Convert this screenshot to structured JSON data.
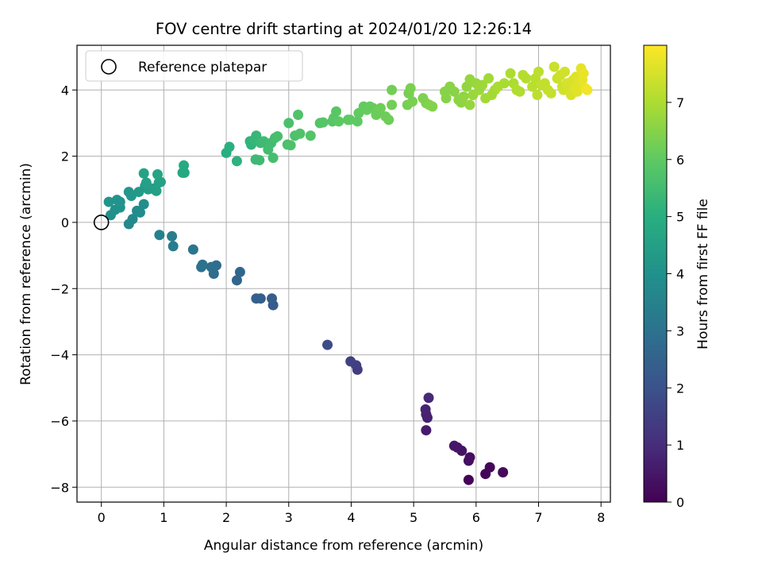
{
  "chart_data": {
    "type": "scatter",
    "title": "FOV centre drift starting at 2024/01/20 12:26:14",
    "xlabel": "Angular distance from reference (arcmin)",
    "ylabel": "Rotation from reference (arcmin)",
    "xlim": [
      -0.39,
      8.15
    ],
    "ylim": [
      -8.45,
      5.35
    ],
    "xticks": [
      0,
      1,
      2,
      3,
      4,
      5,
      6,
      7,
      8
    ],
    "xtick_labels": [
      "0",
      "1",
      "2",
      "3",
      "4",
      "5",
      "6",
      "7",
      "8"
    ],
    "yticks": [
      4,
      2,
      0,
      -2,
      -4,
      -6,
      -8
    ],
    "ytick_labels": [
      "4",
      "2",
      "0",
      "−2",
      "−4",
      "−6",
      "−8"
    ],
    "grid": true,
    "colormap": "viridis",
    "colorbar": {
      "label": "Hours from first FF file",
      "range": [
        0,
        8
      ],
      "ticks": [
        0,
        1,
        2,
        3,
        4,
        5,
        6,
        7
      ],
      "tick_labels": [
        "0",
        "1",
        "2",
        "3",
        "4",
        "5",
        "6",
        "7"
      ]
    },
    "legend": {
      "position": "top-left",
      "entries": [
        "Reference platepar"
      ]
    },
    "reference_point": {
      "x": 0,
      "y": 0
    },
    "points": [
      [
        5.88,
        -7.78,
        0.05
      ],
      [
        6.15,
        -7.6,
        0.1
      ],
      [
        6.22,
        -7.4,
        0.15
      ],
      [
        6.43,
        -7.55,
        0.2
      ],
      [
        5.9,
        -7.1,
        0.25
      ],
      [
        5.88,
        -7.2,
        0.3
      ],
      [
        5.77,
        -6.9,
        0.4
      ],
      [
        5.7,
        -6.8,
        0.45
      ],
      [
        5.65,
        -6.75,
        0.5
      ],
      [
        5.2,
        -6.28,
        0.6
      ],
      [
        5.22,
        -5.9,
        0.7
      ],
      [
        5.2,
        -5.8,
        0.75
      ],
      [
        5.19,
        -5.65,
        0.8
      ],
      [
        5.24,
        -5.3,
        0.9
      ],
      [
        4.1,
        -4.45,
        1.4
      ],
      [
        4.08,
        -4.32,
        1.45
      ],
      [
        3.99,
        -4.2,
        1.5
      ],
      [
        3.62,
        -3.7,
        1.8
      ],
      [
        2.75,
        -2.5,
        2.3
      ],
      [
        2.73,
        -2.3,
        2.35
      ],
      [
        2.55,
        -2.3,
        2.4
      ],
      [
        2.48,
        -2.3,
        2.45
      ],
      [
        2.17,
        -1.75,
        2.6
      ],
      [
        2.22,
        -1.5,
        2.65
      ],
      [
        1.8,
        -1.55,
        2.8
      ],
      [
        1.84,
        -1.3,
        2.85
      ],
      [
        1.76,
        -1.35,
        2.9
      ],
      [
        1.6,
        -1.35,
        2.95
      ],
      [
        1.62,
        -1.28,
        3.0
      ],
      [
        1.47,
        -0.82,
        3.1
      ],
      [
        1.15,
        -0.72,
        3.3
      ],
      [
        1.13,
        -0.42,
        3.35
      ],
      [
        0.93,
        -0.38,
        3.45
      ],
      [
        0.44,
        -0.05,
        3.7
      ],
      [
        0.5,
        0.1,
        3.75
      ],
      [
        0.57,
        0.35,
        3.8
      ],
      [
        0.62,
        0.3,
        3.85
      ],
      [
        0.68,
        0.55,
        3.9
      ],
      [
        0.15,
        0.22,
        3.95
      ],
      [
        0.22,
        0.38,
        4.0
      ],
      [
        0.3,
        0.45,
        4.05
      ],
      [
        0.25,
        0.68,
        4.1
      ],
      [
        0.3,
        0.62,
        4.1
      ],
      [
        0.12,
        0.62,
        4.15
      ],
      [
        0.44,
        0.92,
        4.2
      ],
      [
        0.48,
        0.8,
        4.25
      ],
      [
        0.6,
        0.92,
        4.3
      ],
      [
        0.7,
        1.1,
        4.35
      ],
      [
        0.75,
        1.0,
        4.4
      ],
      [
        0.82,
        1.02,
        4.45
      ],
      [
        0.88,
        0.95,
        4.5
      ],
      [
        0.72,
        1.2,
        4.5
      ],
      [
        0.92,
        1.2,
        4.55
      ],
      [
        0.95,
        1.22,
        4.6
      ],
      [
        0.68,
        1.48,
        4.6
      ],
      [
        0.9,
        1.45,
        4.65
      ],
      [
        1.3,
        1.5,
        4.75
      ],
      [
        1.33,
        1.5,
        4.8
      ],
      [
        1.32,
        1.72,
        4.85
      ],
      [
        2.0,
        2.1,
        5.0
      ],
      [
        2.05,
        2.28,
        5.05
      ],
      [
        2.17,
        1.85,
        5.1
      ],
      [
        2.4,
        2.35,
        5.15
      ],
      [
        2.38,
        2.45,
        5.2
      ],
      [
        2.45,
        2.5,
        5.25
      ],
      [
        2.48,
        2.62,
        5.3
      ],
      [
        2.55,
        2.4,
        5.35
      ],
      [
        2.47,
        1.9,
        5.4
      ],
      [
        2.53,
        1.88,
        5.4
      ],
      [
        2.6,
        2.45,
        5.45
      ],
      [
        2.67,
        2.2,
        5.5
      ],
      [
        2.72,
        2.4,
        5.5
      ],
      [
        2.75,
        1.95,
        5.55
      ],
      [
        2.78,
        2.55,
        5.55
      ],
      [
        2.82,
        2.6,
        5.6
      ],
      [
        2.98,
        2.35,
        5.65
      ],
      [
        3.0,
        3.0,
        5.65
      ],
      [
        3.03,
        2.33,
        5.7
      ],
      [
        3.1,
        2.62,
        5.7
      ],
      [
        3.15,
        3.25,
        5.75
      ],
      [
        3.18,
        2.68,
        5.75
      ],
      [
        3.35,
        2.62,
        5.8
      ],
      [
        3.5,
        3.0,
        5.8
      ],
      [
        3.55,
        3.02,
        5.85
      ],
      [
        3.7,
        3.05,
        5.85
      ],
      [
        3.72,
        3.15,
        5.9
      ],
      [
        3.76,
        3.35,
        5.9
      ],
      [
        3.8,
        3.05,
        5.95
      ],
      [
        3.95,
        3.1,
        5.95
      ],
      [
        3.98,
        3.1,
        6.0
      ],
      [
        4.1,
        3.05,
        6.0
      ],
      [
        4.12,
        3.3,
        6.05
      ],
      [
        4.2,
        3.5,
        6.05
      ],
      [
        4.25,
        3.4,
        6.1
      ],
      [
        4.3,
        3.5,
        6.1
      ],
      [
        4.35,
        3.45,
        6.1
      ],
      [
        4.4,
        3.25,
        6.15
      ],
      [
        4.42,
        3.38,
        6.15
      ],
      [
        4.47,
        3.45,
        6.2
      ],
      [
        4.55,
        3.2,
        6.2
      ],
      [
        4.6,
        3.1,
        6.2
      ],
      [
        4.65,
        3.55,
        6.25
      ],
      [
        4.65,
        4.0,
        6.25
      ],
      [
        4.9,
        3.55,
        6.3
      ],
      [
        4.92,
        3.9,
        6.3
      ],
      [
        4.95,
        4.05,
        6.35
      ],
      [
        4.98,
        3.65,
        6.35
      ],
      [
        5.15,
        3.75,
        6.4
      ],
      [
        5.2,
        3.6,
        6.4
      ],
      [
        5.25,
        3.55,
        6.45
      ],
      [
        5.3,
        3.5,
        6.45
      ],
      [
        5.5,
        3.95,
        6.5
      ],
      [
        5.52,
        3.75,
        6.5
      ],
      [
        5.58,
        4.1,
        6.55
      ],
      [
        5.65,
        3.95,
        6.55
      ],
      [
        5.72,
        3.7,
        6.6
      ],
      [
        5.76,
        3.62,
        6.6
      ],
      [
        5.8,
        3.8,
        6.65
      ],
      [
        5.85,
        4.1,
        6.65
      ],
      [
        5.9,
        4.32,
        6.7
      ],
      [
        5.9,
        3.55,
        6.7
      ],
      [
        5.95,
        3.85,
        6.75
      ],
      [
        6.0,
        4.2,
        6.75
      ],
      [
        6.05,
        4.0,
        6.8
      ],
      [
        6.1,
        4.15,
        6.8
      ],
      [
        6.15,
        3.75,
        6.85
      ],
      [
        6.2,
        4.35,
        6.85
      ],
      [
        6.25,
        3.85,
        6.9
      ],
      [
        6.3,
        4.0,
        6.9
      ],
      [
        6.35,
        4.1,
        6.95
      ],
      [
        6.45,
        4.2,
        6.95
      ],
      [
        6.55,
        4.5,
        7.0
      ],
      [
        6.6,
        4.2,
        7.0
      ],
      [
        6.65,
        4.0,
        7.05
      ],
      [
        6.7,
        3.95,
        7.05
      ],
      [
        6.75,
        4.45,
        7.1
      ],
      [
        6.8,
        4.35,
        7.1
      ],
      [
        6.9,
        4.1,
        7.15
      ],
      [
        6.95,
        4.35,
        7.15
      ],
      [
        6.98,
        3.85,
        7.2
      ],
      [
        7.0,
        4.55,
        7.2
      ],
      [
        7.05,
        4.15,
        7.25
      ],
      [
        7.1,
        4.2,
        7.25
      ],
      [
        7.15,
        4.0,
        7.3
      ],
      [
        7.2,
        3.9,
        7.3
      ],
      [
        7.25,
        4.7,
        7.35
      ],
      [
        7.3,
        4.35,
        7.35
      ],
      [
        7.35,
        4.45,
        7.4
      ],
      [
        7.38,
        4.1,
        7.4
      ],
      [
        7.4,
        4.0,
        7.45
      ],
      [
        7.42,
        4.55,
        7.45
      ],
      [
        7.45,
        4.2,
        7.5
      ],
      [
        7.5,
        4.1,
        7.5
      ],
      [
        7.52,
        3.85,
        7.55
      ],
      [
        7.55,
        4.3,
        7.55
      ],
      [
        7.58,
        4.05,
        7.6
      ],
      [
        7.6,
        4.4,
        7.6
      ],
      [
        7.62,
        3.95,
        7.65
      ],
      [
        7.65,
        4.15,
        7.65
      ],
      [
        7.68,
        4.65,
        7.7
      ],
      [
        7.7,
        4.3,
        7.7
      ],
      [
        7.72,
        4.5,
        7.75
      ],
      [
        7.75,
        4.05,
        7.8
      ],
      [
        7.78,
        4.0,
        7.85
      ]
    ]
  }
}
